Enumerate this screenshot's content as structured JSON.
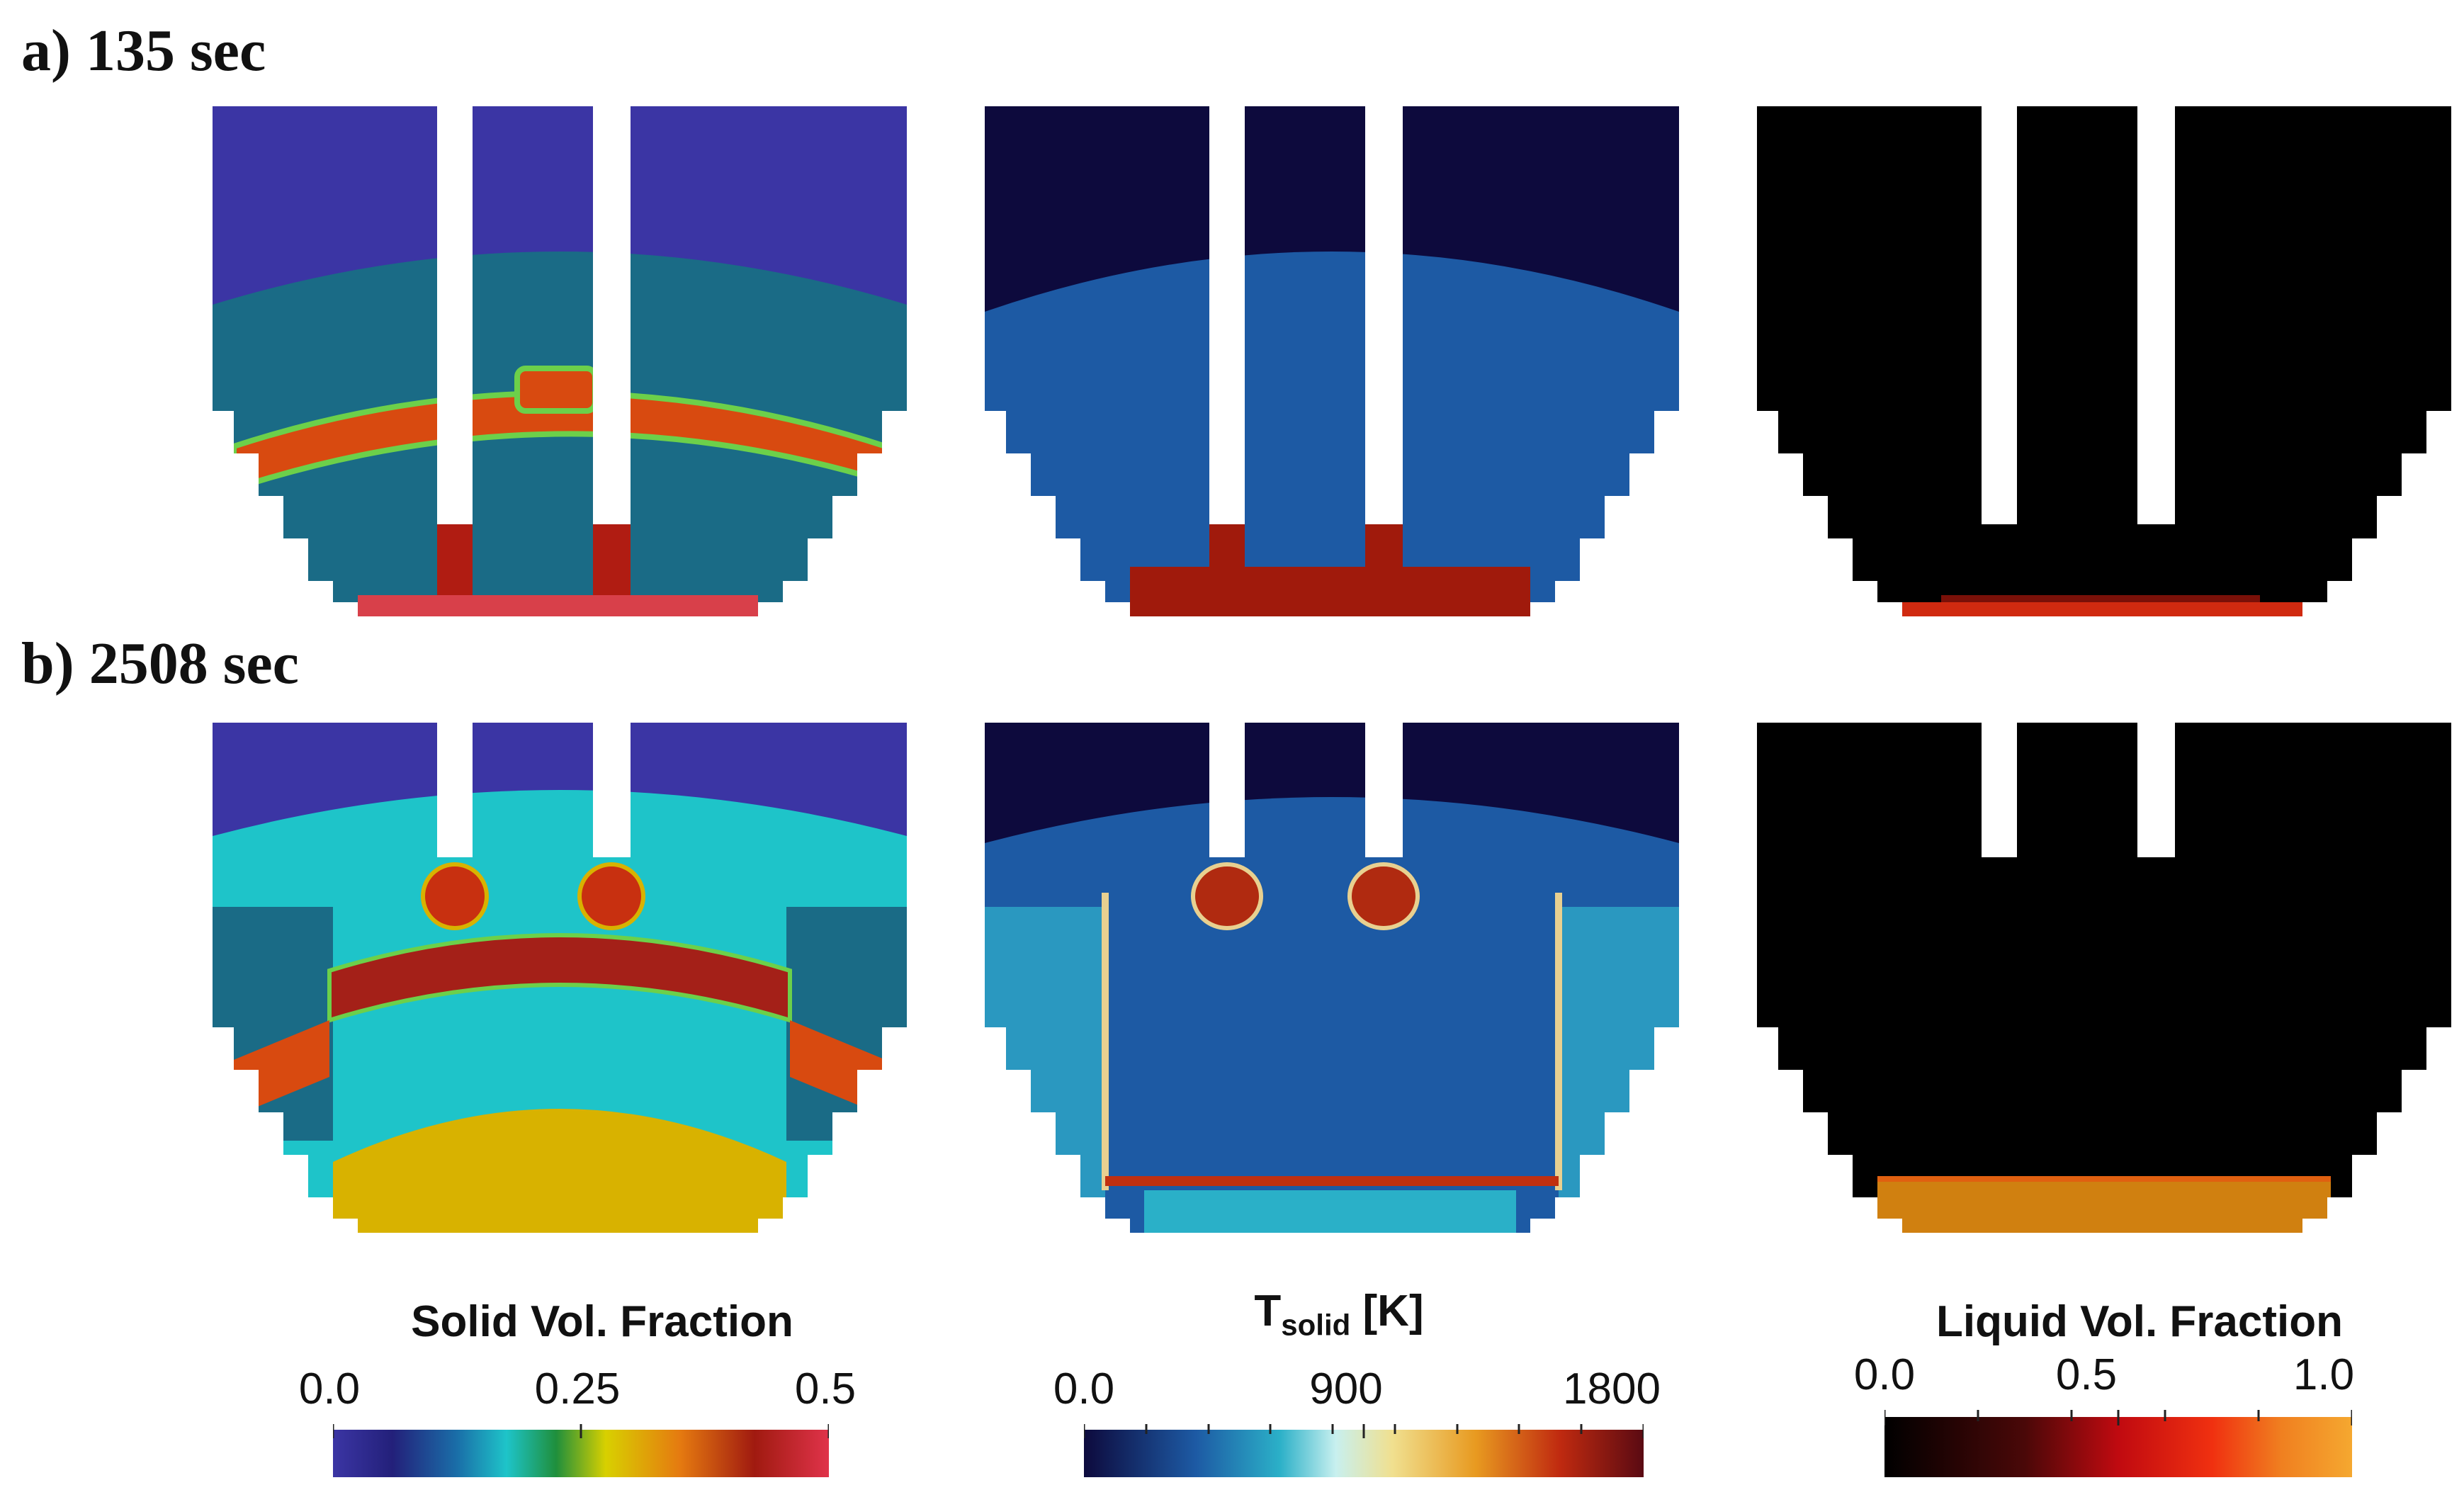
{
  "rows": [
    {
      "label": "a) 135 sec"
    },
    {
      "label": "b) 2508 sec"
    }
  ],
  "colorbars": [
    {
      "title": "Solid Vol. Fraction",
      "ticks": [
        "0.0",
        "0.25",
        "0.5"
      ],
      "colormap": "jet"
    },
    {
      "title_main": "T",
      "title_sub": "solid",
      "title_unit": " [K]",
      "ticks": [
        "0.0",
        "900",
        "1800"
      ],
      "colormap": "turbo-like"
    },
    {
      "title": "Liquid Vol. Fraction",
      "ticks": [
        "0.0",
        "0.5",
        "1.0"
      ],
      "colormap": "black-body"
    }
  ],
  "colors": {
    "deep_blue": "#3b35a4",
    "teal": "#1a6b86",
    "cyan": "#1ec4c9",
    "orange_red": "#d84a10",
    "dark_red": "#a42018",
    "yellow": "#d8b200",
    "navy": "#0d0a3d",
    "mid_blue": "#1d5aa4",
    "black": "#000000"
  }
}
